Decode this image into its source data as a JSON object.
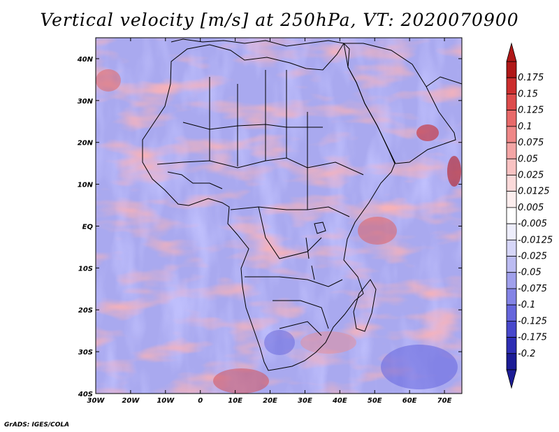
{
  "title": "Vertical velocity [m/s] at 250hPa, VT: 2020070900",
  "credit": "GrADS: IGES/COLA",
  "map": {
    "region": "Africa",
    "lon_range": [
      -30,
      75
    ],
    "lat_range": [
      -40,
      45
    ],
    "lon_ticks": [
      {
        "value": -30,
        "label": "30W"
      },
      {
        "value": -20,
        "label": "20W"
      },
      {
        "value": -10,
        "label": "10W"
      },
      {
        "value": 0,
        "label": "0"
      },
      {
        "value": 10,
        "label": "10E"
      },
      {
        "value": 20,
        "label": "20E"
      },
      {
        "value": 30,
        "label": "30E"
      },
      {
        "value": 40,
        "label": "40E"
      },
      {
        "value": 50,
        "label": "50E"
      },
      {
        "value": 60,
        "label": "60E"
      },
      {
        "value": 70,
        "label": "70E"
      }
    ],
    "lat_ticks": [
      {
        "value": 40,
        "label": "40N"
      },
      {
        "value": 30,
        "label": "30N"
      },
      {
        "value": 20,
        "label": "20N"
      },
      {
        "value": 10,
        "label": "10N"
      },
      {
        "value": 0,
        "label": "EQ"
      },
      {
        "value": -10,
        "label": "10S"
      },
      {
        "value": -20,
        "label": "20S"
      },
      {
        "value": -30,
        "label": "30S"
      },
      {
        "value": -40,
        "label": "40S"
      }
    ]
  },
  "colorbar": {
    "labels": [
      "0.175",
      "0.15",
      "0.125",
      "0.1",
      "0.075",
      "0.05",
      "0.025",
      "0.0125",
      "0.005",
      "-0.005",
      "-0.0125",
      "-0.025",
      "-0.05",
      "-0.075",
      "-0.1",
      "-0.125",
      "-0.175",
      "-0.2"
    ],
    "colors": [
      "#b01818",
      "#cc2e2e",
      "#dd4c4c",
      "#e86a6a",
      "#ef8888",
      "#f4a6a6",
      "#f8c2c2",
      "#fbdada",
      "#fdeeee",
      "#ffffff",
      "#eeeefc",
      "#d6d6f8",
      "#bcbcf2",
      "#a0a0ec",
      "#8484e6",
      "#6666dc",
      "#4848cc",
      "#2e2eb4",
      "#1c1c96"
    ],
    "top_arrow_color": "#b01818",
    "bottom_arrow_color": "#1c1c96"
  }
}
